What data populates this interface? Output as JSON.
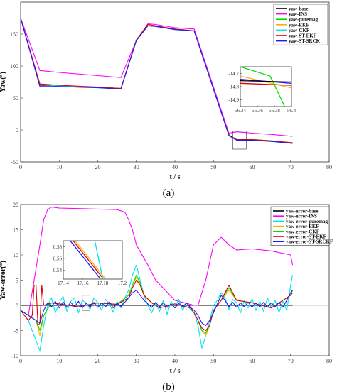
{
  "colors": {
    "base": "#000000",
    "ins": "#ff00ff",
    "puremag": "#00dd00",
    "ekf": "#ffb000",
    "ckf": "#00e5e5",
    "stekf": "#e00000",
    "stsrck": "#1a1aff"
  },
  "chart_data": [
    {
      "type": "line",
      "caption": "(a)",
      "xlabel": "t / s",
      "ylabel": "Yaw(°)",
      "xlim": [
        0,
        80
      ],
      "ylim": [
        -50,
        200
      ],
      "xticks": [
        0,
        10,
        20,
        30,
        40,
        50,
        60,
        70,
        80
      ],
      "yticks": [
        -50,
        0,
        50,
        100,
        150
      ],
      "legend_position": "top-right",
      "series": [
        {
          "name": "yaw-base",
          "color": "#000000",
          "x": [
            0,
            5,
            10,
            20,
            26,
            30,
            33,
            35,
            40,
            45,
            54,
            56,
            60,
            65,
            70.5
          ],
          "y": [
            175,
            70,
            69,
            67,
            65,
            140,
            163,
            162,
            158,
            155,
            -8,
            -15,
            -15,
            -17,
            -20
          ]
        },
        {
          "name": "yaw-INS",
          "color": "#ff00ff",
          "x": [
            0,
            5,
            10,
            20,
            26,
            30,
            33,
            35,
            40,
            45,
            54,
            56,
            60,
            65,
            70.5
          ],
          "y": [
            175,
            93,
            90,
            85,
            82,
            140,
            166,
            165,
            160,
            158,
            -5,
            -3,
            -5,
            -7,
            -10
          ]
        },
        {
          "name": "yaw-puremag",
          "color": "#00dd00",
          "x": [
            0,
            5,
            10,
            20,
            26,
            30,
            33,
            35,
            40,
            45,
            54,
            56,
            60,
            65,
            70.5
          ],
          "y": [
            175,
            71,
            69,
            67,
            65,
            140,
            163,
            162,
            158,
            155,
            -8,
            -15,
            -15,
            -17,
            -20
          ]
        },
        {
          "name": "yaw-EKF",
          "color": "#ffb000",
          "x": [
            0,
            5,
            10,
            20,
            26,
            30,
            33,
            35,
            40,
            45,
            54,
            56,
            60,
            65,
            70.5
          ],
          "y": [
            175,
            71,
            69,
            67,
            65,
            140,
            163,
            162,
            158,
            155,
            -8,
            -15,
            -15,
            -17,
            -20
          ]
        },
        {
          "name": "yaw-CKF",
          "color": "#00e5e5",
          "x": [
            0,
            5,
            10,
            20,
            26,
            30,
            33,
            35,
            40,
            45,
            54,
            56,
            60,
            65,
            70.5
          ],
          "y": [
            175,
            71,
            69,
            67,
            65,
            140,
            163,
            162,
            158,
            155,
            -8,
            -15,
            -15,
            -17,
            -20
          ]
        },
        {
          "name": "yaw-ST-EKF",
          "color": "#e00000",
          "x": [
            0,
            5,
            10,
            20,
            26,
            30,
            33,
            35,
            40,
            45,
            54,
            56,
            60,
            65,
            70.5
          ],
          "y": [
            175,
            72,
            70,
            67,
            65,
            141,
            165,
            163,
            158,
            155,
            -8,
            -15,
            -15,
            -17,
            -20
          ]
        },
        {
          "name": "yaw-ST-SRCK",
          "color": "#1a1aff",
          "x": [
            0,
            5,
            10,
            20,
            26,
            30,
            33,
            35,
            40,
            45,
            54,
            56,
            60,
            65,
            70.5
          ],
          "y": [
            175,
            68,
            68,
            66,
            64,
            140,
            163,
            162,
            157,
            155,
            -9,
            -16,
            -16,
            -18,
            -21
          ]
        }
      ],
      "inset": {
        "xlim": [
          56.34,
          56.4
        ],
        "ylim": [
          -14.95,
          -14.65
        ],
        "xticks": [
          56.34,
          56.36,
          56.38,
          56.4
        ],
        "yticks": [
          -14.7,
          -14.8,
          -14.9
        ],
        "xtick_labels": [
          "56.34",
          "56.36",
          "56.38",
          "56.4"
        ],
        "ytick_labels": [
          "-14.7",
          "-14.8",
          "-14.9"
        ],
        "series": [
          {
            "name": "yaw-puremag",
            "color": "#00dd00",
            "x": [
              56.34,
              56.375,
              56.392
            ],
            "y": [
              -14.65,
              -14.72,
              -14.95
            ]
          },
          {
            "name": "yaw-EKF",
            "color": "#ffb000",
            "x": [
              56.34,
              56.4
            ],
            "y": [
              -14.72,
              -14.81
            ]
          },
          {
            "name": "yaw-ST-SRCK",
            "color": "#1a1aff",
            "x": [
              56.34,
              56.4
            ],
            "y": [
              -14.745,
              -14.775
            ]
          },
          {
            "name": "yaw-base",
            "color": "#000000",
            "x": [
              56.34,
              56.4
            ],
            "y": [
              -14.755,
              -14.765
            ]
          },
          {
            "name": "yaw-ST-EKF",
            "color": "#e00000",
            "x": [
              56.34,
              56.4
            ],
            "y": [
              -14.775,
              -14.79
            ]
          }
        ]
      }
    },
    {
      "type": "line",
      "caption": "(b)",
      "xlabel": "t / s",
      "ylabel": "Yaw-error(°)",
      "xlim": [
        0,
        80
      ],
      "ylim": [
        -10,
        20
      ],
      "xticks": [
        0,
        10,
        20,
        30,
        40,
        50,
        60,
        70,
        80
      ],
      "yticks": [
        -10,
        -5,
        0,
        5,
        10,
        15,
        20
      ],
      "legend_position": "top-right",
      "series": [
        {
          "name": "yaw-error-base",
          "color": "#000000",
          "x": [
            0,
            70.5
          ],
          "y": [
            0,
            0
          ]
        },
        {
          "name": "yaw-error-INS",
          "color": "#ff00ff",
          "x": [
            0,
            2,
            5,
            6,
            7,
            8,
            10,
            15,
            20,
            25,
            27,
            28,
            29,
            30,
            33,
            35,
            40,
            45,
            46,
            48,
            50,
            52,
            54,
            56,
            60,
            65,
            70,
            70.5
          ],
          "y": [
            -1,
            -2,
            12,
            17,
            19,
            19.5,
            19.3,
            19.2,
            19.1,
            19,
            18.5,
            17,
            15,
            12,
            8,
            5,
            1,
            0,
            0,
            5,
            12,
            13.5,
            12,
            11,
            11.2,
            10.8,
            10,
            8
          ]
        },
        {
          "name": "yaw-error-puremag",
          "color": "#00e5e5",
          "x": [
            0,
            1,
            2,
            3,
            4,
            5,
            6,
            7,
            8,
            9,
            10,
            11,
            12,
            13,
            14,
            15,
            16,
            17,
            18,
            19,
            20,
            21,
            22,
            23,
            24,
            25,
            26,
            27,
            28,
            29,
            30,
            31,
            32,
            33,
            34,
            35,
            36,
            37,
            38,
            39,
            40,
            41,
            42,
            43,
            44,
            45,
            46,
            47,
            48,
            49,
            50,
            51,
            52,
            53,
            54,
            55,
            56,
            57,
            58,
            59,
            60,
            61,
            62,
            63,
            64,
            65,
            66,
            67,
            68,
            69,
            70,
            70.5
          ],
          "y": [
            -1,
            -2,
            -3,
            -5,
            -7,
            -9,
            -4,
            0,
            1.5,
            -1.5,
            0.5,
            1.8,
            -1.2,
            0.8,
            1.5,
            -1.5,
            1,
            0.5,
            -0.8,
            1.5,
            0.5,
            -1,
            1.2,
            0.3,
            -1.4,
            0.8,
            -0.5,
            1.5,
            3,
            6,
            8,
            5,
            2,
            0,
            -1.5,
            0.5,
            -1.2,
            1,
            -1.8,
            0.8,
            -0.5,
            1.2,
            -1,
            0.5,
            -0.8,
            -1.5,
            -4,
            -8.5,
            -6,
            -3,
            0,
            1,
            2.5,
            1.5,
            -0.8,
            1.2,
            0.5,
            -1.5,
            1,
            -0.5,
            1.3,
            -1,
            0.8,
            -1.2,
            1.5,
            -0.5,
            1,
            -1.4,
            0.8,
            -1,
            4,
            6
          ]
        },
        {
          "name": "yaw-error-EKF",
          "color": "#ffb000",
          "x": [
            0,
            2,
            4,
            5,
            6,
            8,
            10,
            15,
            20,
            25,
            28,
            29,
            30,
            31,
            32,
            34,
            36,
            40,
            44,
            45,
            46,
            47,
            48,
            49,
            50,
            52,
            54,
            56,
            60,
            65,
            70,
            70.5
          ],
          "y": [
            -1,
            -2,
            -3,
            -6,
            -2,
            0.5,
            0.3,
            -0.3,
            0.5,
            0.2,
            2,
            4,
            5.5,
            4,
            2,
            0.5,
            -0.5,
            0.3,
            -0.5,
            -1.5,
            -3,
            -5,
            -6,
            -4,
            -1,
            1,
            3,
            1,
            0.5,
            -0.5,
            2,
            3
          ]
        },
        {
          "name": "yaw-error-CKF",
          "color": "#00dd00",
          "x": [
            0,
            2,
            4,
            5,
            6,
            8,
            10,
            15,
            20,
            25,
            28,
            29,
            30,
            31,
            32,
            34,
            36,
            40,
            44,
            45,
            46,
            47,
            48,
            49,
            50,
            52,
            54,
            56,
            60,
            65,
            70,
            70.5
          ],
          "y": [
            -1,
            -2,
            -3,
            -5,
            -2,
            0.5,
            0.3,
            -0.3,
            0.5,
            0.2,
            2,
            4,
            6,
            4.5,
            2,
            0.5,
            -0.5,
            0.3,
            -0.5,
            -1.5,
            -3,
            -5,
            -5.5,
            -4,
            -1,
            1,
            3.5,
            1,
            0.5,
            -0.5,
            2,
            3
          ]
        },
        {
          "name": "yaw-error-ST-EKF",
          "color": "#e00000",
          "x": [
            0,
            1,
            2,
            3,
            3.5,
            4,
            4.5,
            5,
            5.5,
            6,
            8,
            10,
            15,
            20,
            25,
            28,
            29,
            30,
            31,
            32,
            34,
            36,
            40,
            44,
            45,
            46,
            47,
            48,
            49,
            50,
            52,
            54,
            56,
            60,
            65,
            70,
            70.5
          ],
          "y": [
            -1,
            -2,
            -3,
            -2,
            4,
            4,
            -4,
            -3.5,
            4,
            0,
            0.5,
            0.3,
            -0.3,
            0.5,
            0.2,
            1.5,
            3.5,
            5,
            4,
            2,
            0.5,
            -0.5,
            0.3,
            -0.5,
            -1.5,
            -3,
            -4.5,
            -5,
            -4,
            -1,
            1,
            4,
            1,
            0.5,
            -0.5,
            2,
            2.5
          ]
        },
        {
          "name": "yaw-error-ST-SRCKF",
          "color": "#1a1aff",
          "x": [
            0,
            2,
            4,
            5,
            6,
            7,
            8,
            9,
            10,
            11,
            12,
            13,
            14,
            15,
            16,
            17,
            18,
            19,
            20,
            21,
            22,
            23,
            24,
            25,
            26,
            27,
            28,
            29,
            30,
            31,
            32,
            33,
            34,
            35,
            36,
            37,
            38,
            39,
            40,
            41,
            42,
            43,
            44,
            45,
            46,
            47,
            48,
            49,
            50,
            51,
            52,
            53,
            54,
            55,
            56,
            57,
            58,
            59,
            60,
            61,
            62,
            63,
            64,
            65,
            66,
            67,
            68,
            69,
            70,
            70.5
          ],
          "y": [
            -1,
            -2,
            -3,
            -3.5,
            -1,
            0.5,
            -0.3,
            0.8,
            -0.5,
            0.7,
            -0.4,
            0.6,
            -0.3,
            0.8,
            -0.5,
            0.4,
            -0.3,
            0.6,
            -0.4,
            0.5,
            -0.3,
            0.7,
            -0.5,
            0.4,
            -0.2,
            0.6,
            1.5,
            2.5,
            3,
            2,
            1,
            0.3,
            -0.4,
            0.6,
            -0.3,
            0.5,
            -0.4,
            0.3,
            -0.5,
            0.4,
            -0.3,
            0.5,
            -0.4,
            -1,
            -2,
            -3.5,
            -4,
            -3,
            -1.5,
            0.3,
            2,
            1,
            -0.3,
            0.6,
            -0.4,
            0.5,
            -0.3,
            0.6,
            -0.4,
            0.5,
            -0.3,
            0.6,
            -0.4,
            0.5,
            -0.3,
            0.6,
            -0.4,
            1,
            2.5,
            3
          ]
        }
      ],
      "inset": {
        "xlim": [
          17.14,
          17.2
        ],
        "ylim": [
          0.525,
          0.59
        ],
        "xticks": [
          17.14,
          17.16,
          17.18,
          17.2
        ],
        "yticks": [
          0.58,
          0.56,
          0.54
        ],
        "xtick_labels": [
          "17.14",
          "17.16",
          "17.18",
          "17.2"
        ],
        "ytick_labels": [
          "0.58",
          "0.56",
          "0.54"
        ],
        "series": [
          {
            "name": "yaw-error-ST-SRCKF",
            "color": "#1a1aff",
            "x": [
              17.147,
              17.177
            ],
            "y": [
              0.59,
              0.527
            ]
          },
          {
            "name": "yaw-error-ST-EKF",
            "color": "#e00000",
            "x": [
              17.15,
              17.18
            ],
            "y": [
              0.59,
              0.527
            ]
          },
          {
            "name": "yaw-error-EKF",
            "color": "#ffb000",
            "x": [
              17.152,
              17.182
            ],
            "y": [
              0.59,
              0.527
            ]
          },
          {
            "name": "yaw-error-puremag",
            "color": "#00e5e5",
            "x": [
              17.172,
              17.18
            ],
            "y": [
              0.59,
              0.527
            ]
          }
        ]
      }
    }
  ]
}
